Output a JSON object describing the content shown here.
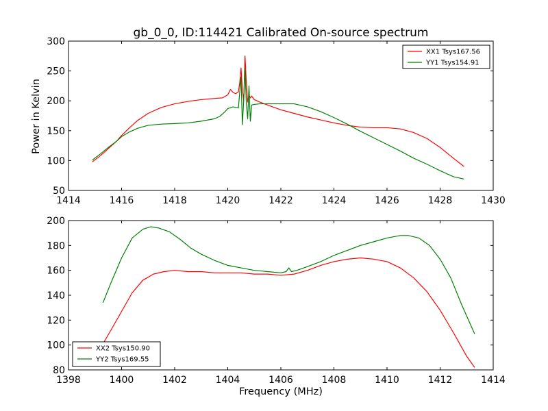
{
  "chart_data": [
    {
      "type": "line",
      "title": "gb_0_0, ID:114421 Calibrated On-source spectrum",
      "xlabel": "",
      "ylabel": "Power in Kelvin",
      "xlim": [
        1414,
        1430
      ],
      "ylim": [
        50,
        300
      ],
      "xticks": [
        1414,
        1416,
        1418,
        1420,
        1422,
        1424,
        1426,
        1428,
        1430
      ],
      "yticks": [
        50,
        100,
        150,
        200,
        250,
        300
      ],
      "legend_position": "top-right",
      "grid": false,
      "series": [
        {
          "name": "XX1 Tsys167.56",
          "color": "#ff0000",
          "x": [
            1414.9,
            1415.2,
            1415.5,
            1415.8,
            1416.0,
            1416.3,
            1416.6,
            1417.0,
            1417.5,
            1418.0,
            1418.5,
            1419.0,
            1419.5,
            1419.8,
            1420.0,
            1420.1,
            1420.2,
            1420.3,
            1420.4,
            1420.45,
            1420.5,
            1420.55,
            1420.6,
            1420.65,
            1420.7,
            1420.75,
            1420.8,
            1420.85,
            1420.9,
            1421.0,
            1421.2,
            1421.5,
            1422.0,
            1422.5,
            1423.0,
            1423.5,
            1424.0,
            1424.5,
            1425.0,
            1425.5,
            1426.0,
            1426.5,
            1427.0,
            1427.5,
            1428.0,
            1428.5,
            1428.9
          ],
          "y": [
            98,
            108,
            120,
            132,
            142,
            155,
            167,
            179,
            189,
            195,
            199,
            202,
            204,
            205,
            210,
            219,
            214,
            212,
            215,
            230,
            255,
            220,
            200,
            275,
            230,
            198,
            210,
            205,
            208,
            202,
            198,
            193,
            185,
            179,
            173,
            168,
            163,
            159,
            156,
            155,
            155,
            153,
            147,
            137,
            122,
            104,
            90
          ]
        },
        {
          "name": "YY1 Tsys154.91",
          "color": "#008000",
          "x": [
            1414.9,
            1415.2,
            1415.5,
            1415.8,
            1416.0,
            1416.3,
            1416.6,
            1417.0,
            1417.5,
            1418.0,
            1418.5,
            1419.0,
            1419.5,
            1419.7,
            1419.9,
            1420.0,
            1420.2,
            1420.4,
            1420.5,
            1420.55,
            1420.6,
            1420.65,
            1420.7,
            1420.75,
            1420.8,
            1420.85,
            1420.9,
            1421.0,
            1421.2,
            1421.5,
            1422.0,
            1422.5,
            1423.0,
            1423.5,
            1424.0,
            1424.5,
            1425.0,
            1425.5,
            1426.0,
            1426.5,
            1427.0,
            1427.5,
            1428.0,
            1428.5,
            1428.9
          ],
          "y": [
            101,
            111,
            122,
            132,
            140,
            148,
            154,
            159,
            161,
            162,
            163,
            166,
            170,
            174,
            182,
            187,
            190,
            188,
            240,
            160,
            200,
            255,
            195,
            170,
            225,
            166,
            193,
            194,
            195,
            195,
            195,
            195,
            190,
            182,
            172,
            161,
            149,
            138,
            127,
            116,
            104,
            94,
            83,
            73,
            69
          ]
        }
      ]
    },
    {
      "type": "line",
      "title": "",
      "xlabel": "Frequency (MHz)",
      "ylabel": "",
      "xlim": [
        1398,
        1414
      ],
      "ylim": [
        80,
        200
      ],
      "xticks": [
        1398,
        1400,
        1402,
        1404,
        1406,
        1408,
        1410,
        1412,
        1414
      ],
      "yticks": [
        80,
        100,
        120,
        140,
        160,
        180,
        200
      ],
      "legend_position": "bottom-left",
      "grid": false,
      "series": [
        {
          "name": "XX2 Tsys150.90",
          "color": "#ff0000",
          "x": [
            1399.3,
            1399.6,
            1400.0,
            1400.4,
            1400.8,
            1401.2,
            1401.6,
            1402.0,
            1402.5,
            1403.0,
            1403.5,
            1404.0,
            1404.5,
            1405.0,
            1405.5,
            1406.0,
            1406.5,
            1407.0,
            1407.5,
            1408.0,
            1408.5,
            1409.0,
            1409.5,
            1410.0,
            1410.5,
            1411.0,
            1411.5,
            1412.0,
            1412.5,
            1413.0,
            1413.3
          ],
          "y": [
            101,
            112,
            127,
            142,
            152,
            157,
            159,
            160,
            159,
            159,
            158,
            158,
            158,
            157,
            157,
            156,
            157,
            160,
            164,
            167,
            169,
            170,
            169,
            167,
            162,
            154,
            143,
            128,
            110,
            91,
            82
          ]
        },
        {
          "name": "YY2 Tsys169.55",
          "color": "#008000",
          "x": [
            1399.3,
            1399.6,
            1400.0,
            1400.4,
            1400.8,
            1401.1,
            1401.4,
            1401.8,
            1402.2,
            1402.6,
            1403.0,
            1403.5,
            1404.0,
            1404.5,
            1405.0,
            1405.5,
            1406.0,
            1406.2,
            1406.3,
            1406.4,
            1406.6,
            1407.0,
            1407.5,
            1408.0,
            1408.5,
            1409.0,
            1409.5,
            1410.0,
            1410.5,
            1410.8,
            1411.2,
            1411.6,
            1412.0,
            1412.4,
            1412.8,
            1413.3
          ],
          "y": [
            134,
            150,
            170,
            186,
            193,
            195,
            194,
            191,
            185,
            178,
            173,
            168,
            164,
            162,
            160,
            159,
            158,
            159,
            162,
            159,
            160,
            163,
            167,
            172,
            176,
            180,
            183,
            186,
            188,
            188,
            186,
            180,
            169,
            154,
            133,
            109
          ]
        }
      ]
    }
  ]
}
